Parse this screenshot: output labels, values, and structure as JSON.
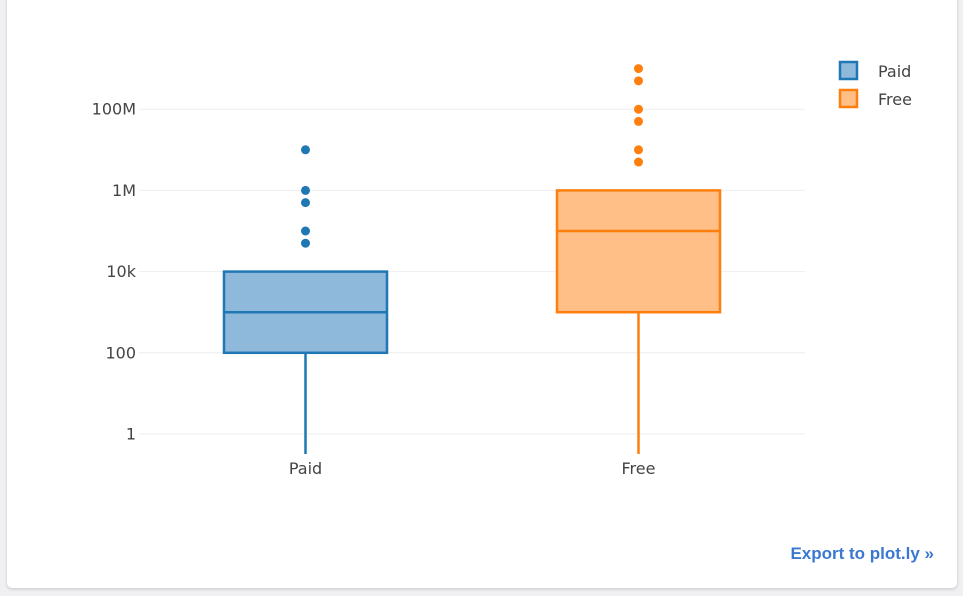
{
  "chart_data": {
    "type": "box",
    "title": "",
    "xlabel": "",
    "ylabel": "",
    "yscale": "log",
    "yticks": [
      {
        "value": 1,
        "label": "1"
      },
      {
        "value": 100,
        "label": "100"
      },
      {
        "value": 10000,
        "label": "10k"
      },
      {
        "value": 1000000,
        "label": "1M"
      },
      {
        "value": 100000000,
        "label": "100M"
      }
    ],
    "ylim": [
      0.3,
      3000000000
    ],
    "grid": true,
    "legend_position": "top-right",
    "categories": [
      "Paid",
      "Free"
    ],
    "series": [
      {
        "name": "Paid",
        "color": "#1f77b4",
        "fill": "#8fb9db",
        "lowerfence": 0.3,
        "q1": 100,
        "median": 1000,
        "q3": 10000,
        "upperfence": 10000,
        "outliers": [
          50000,
          100000,
          500000,
          1000000,
          10000000
        ]
      },
      {
        "name": "Free",
        "color": "#ff7f0e",
        "fill": "#ffbf86",
        "lowerfence": 0.3,
        "q1": 1000,
        "median": 100000,
        "q3": 1000000,
        "upperfence": 1000000,
        "outliers": [
          5000000,
          10000000,
          50000000,
          100000000,
          500000000,
          1000000000
        ]
      }
    ]
  },
  "export_link": "Export to plot.ly »"
}
